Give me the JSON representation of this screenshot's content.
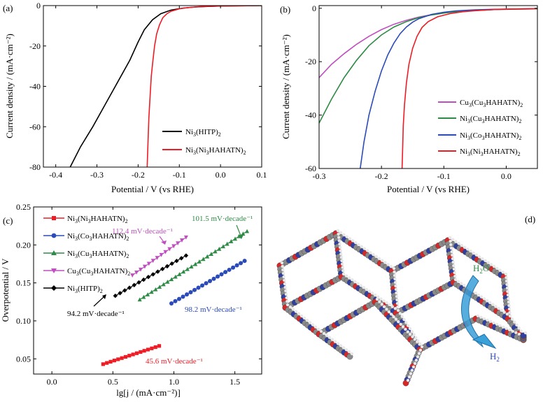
{
  "chart_data": [
    {
      "panel": "(a)",
      "type": "line",
      "xlabel": "Potential / V (vs RHE)",
      "ylabel": "Current density / (mA·cm⁻²)",
      "xlim": [
        -0.43,
        0.1
      ],
      "ylim": [
        -80,
        0
      ],
      "xticks": [
        -0.4,
        -0.3,
        -0.2,
        -0.1,
        0.0,
        0.1
      ],
      "xtick_labels": [
        "-0.4",
        "-0.3",
        "-0.2",
        "-0.1",
        "0.0",
        "0.1"
      ],
      "yticks": [
        0,
        -20,
        -40,
        -60,
        -80
      ],
      "ytick_labels": [
        "0",
        "-20",
        "-40",
        "-60",
        "-80"
      ],
      "legend": "bottom-right",
      "series": [
        {
          "name": "Ni3(HITP)2",
          "label_main": "Ni",
          "label_sub1": "3",
          "label_mid": "(HITP)",
          "label_sub2": "2",
          "color": "#000000",
          "x": [
            -0.365,
            -0.34,
            -0.31,
            -0.28,
            -0.25,
            -0.22,
            -0.2,
            -0.185,
            -0.165,
            -0.145,
            -0.12,
            -0.09,
            -0.06,
            -0.03,
            0.0,
            0.04,
            0.1
          ],
          "y": [
            -80,
            -70,
            -60,
            -49,
            -38,
            -27,
            -18,
            -12,
            -7,
            -4,
            -2.2,
            -1.2,
            -0.7,
            -0.4,
            -0.2,
            -0.1,
            0
          ]
        },
        {
          "name": "Ni3(Ni3HAHATN)2",
          "label_main": "Ni",
          "label_sub1": "3",
          "label_mid": "(Ni",
          "label_sub2": "3",
          "label_rest": "HAHATN)",
          "label_sub3": "2",
          "color": "#ee1c25",
          "x": [
            -0.178,
            -0.176,
            -0.174,
            -0.171,
            -0.168,
            -0.164,
            -0.16,
            -0.155,
            -0.148,
            -0.14,
            -0.13,
            -0.12,
            -0.1,
            -0.08,
            -0.05,
            -0.02,
            0.0,
            0.05,
            0.1
          ],
          "y": [
            -80,
            -68,
            -56,
            -45,
            -35,
            -27,
            -20,
            -14,
            -9.5,
            -6,
            -4,
            -2.8,
            -1.6,
            -1.0,
            -0.5,
            -0.3,
            -0.2,
            -0.1,
            0
          ]
        }
      ]
    },
    {
      "panel": "(b)",
      "type": "line",
      "xlabel": "Potential / V (vs RHE)",
      "ylabel": "Current density / (mA·cm⁻²)",
      "xlim": [
        -0.3,
        0.05
      ],
      "ylim": [
        -60,
        1
      ],
      "xticks": [
        -0.3,
        -0.2,
        -0.1,
        0.0
      ],
      "xtick_labels": [
        "-0.3",
        "-0.2",
        "-0.1",
        "0.0"
      ],
      "yticks": [
        0,
        -20,
        -40,
        -60
      ],
      "ytick_labels": [
        "0",
        "-20",
        "-40",
        "-60"
      ],
      "legend": "bottom-right",
      "series": [
        {
          "name": "Cu3(Cu3HAHATN)2",
          "label_main": "Cu",
          "label_sub1": "3",
          "label_mid": "(Cu",
          "label_sub2": "3",
          "label_rest": "HAHATN)",
          "label_sub3": "2",
          "color": "#bf4fbf",
          "x": [
            -0.3,
            -0.28,
            -0.26,
            -0.24,
            -0.22,
            -0.2,
            -0.18,
            -0.16,
            -0.14,
            -0.12,
            -0.1,
            -0.08,
            -0.05,
            -0.02,
            0.0,
            0.05
          ],
          "y": [
            -26,
            -21,
            -17,
            -13.5,
            -10.5,
            -8,
            -6,
            -4.5,
            -3.3,
            -2.4,
            -1.7,
            -1.2,
            -0.8,
            -0.5,
            -0.4,
            -0.2
          ]
        },
        {
          "name": "Ni3(Cu3HAHATN)2",
          "label_main": "Ni",
          "label_sub1": "3",
          "label_mid": "(Cu",
          "label_sub2": "3",
          "label_rest": "HAHATN)",
          "label_sub3": "2",
          "color": "#2e8b46",
          "x": [
            -0.3,
            -0.28,
            -0.26,
            -0.24,
            -0.22,
            -0.2,
            -0.18,
            -0.16,
            -0.14,
            -0.12,
            -0.1,
            -0.08,
            -0.05,
            -0.02,
            0.0,
            0.05
          ],
          "y": [
            -43,
            -34,
            -26,
            -19.5,
            -14,
            -10,
            -7,
            -5,
            -3.5,
            -2.5,
            -1.8,
            -1.3,
            -0.8,
            -0.5,
            -0.4,
            -0.2
          ]
        },
        {
          "name": "Ni3(Co3HAHATN)2",
          "label_main": "Ni",
          "label_sub1": "3",
          "label_mid": "(Co",
          "label_sub2": "3",
          "label_rest": "HAHATN)",
          "label_sub3": "2",
          "color": "#2b4bb8",
          "x": [
            -0.234,
            -0.228,
            -0.22,
            -0.21,
            -0.2,
            -0.19,
            -0.18,
            -0.17,
            -0.16,
            -0.15,
            -0.14,
            -0.12,
            -0.1,
            -0.08,
            -0.05,
            -0.02,
            0.0,
            0.05
          ],
          "y": [
            -60,
            -50,
            -40,
            -31,
            -23.5,
            -17.5,
            -13,
            -9.5,
            -7,
            -5.2,
            -3.9,
            -2.3,
            -1.5,
            -1.0,
            -0.6,
            -0.4,
            -0.3,
            -0.1
          ]
        },
        {
          "name": "Ni3(Ni3HAHATN)2",
          "label_main": "Ni",
          "label_sub1": "3",
          "label_mid": "(Ni",
          "label_sub2": "3",
          "label_rest": "HAHATN)",
          "label_sub3": "2",
          "color": "#ee1c25",
          "x": [
            -0.167,
            -0.166,
            -0.165,
            -0.163,
            -0.16,
            -0.156,
            -0.15,
            -0.143,
            -0.135,
            -0.125,
            -0.11,
            -0.09,
            -0.07,
            -0.05,
            -0.02,
            0.0,
            0.05
          ],
          "y": [
            -60,
            -52,
            -44,
            -36,
            -28,
            -21,
            -15,
            -10.5,
            -7.2,
            -5,
            -3.2,
            -2,
            -1.3,
            -0.9,
            -0.5,
            -0.3,
            -0.1
          ]
        }
      ]
    },
    {
      "panel": "(c)",
      "type": "scatter",
      "xlabel": "lg[j / (mA·cm⁻²)]",
      "ylabel": "Overpotential / V",
      "xlim": [
        -0.15,
        1.72
      ],
      "ylim": [
        0.03,
        0.25
      ],
      "xticks": [
        0.0,
        0.5,
        1.0,
        1.5
      ],
      "xtick_labels": [
        "0.0",
        "0.5",
        "1.0",
        "1.5"
      ],
      "yticks": [
        0.05,
        0.1,
        0.15,
        0.2,
        0.25
      ],
      "ytick_labels": [
        "0.05",
        "0.10",
        "0.15",
        "0.20",
        "0.25"
      ],
      "legend": "top-left",
      "series": [
        {
          "name": "Ni3(Ni3HAHATN)2",
          "label_main": "Ni",
          "label_sub1": "3",
          "label_mid": "(Ni",
          "label_sub2": "3",
          "label_rest": "HAHATN)",
          "label_sub3": "2",
          "color": "#ee1c25",
          "marker": "square",
          "x_start": 0.42,
          "x_end": 0.88,
          "y_start": 0.043,
          "y_end": 0.067,
          "n": 16,
          "annotation": "45.6 mV·decade⁻¹"
        },
        {
          "name": "Ni3(Co3HAHATN)2",
          "label_main": "Ni",
          "label_sub1": "3",
          "label_mid": "(Co",
          "label_sub2": "3",
          "label_rest": "HAHATN)",
          "label_sub3": "2",
          "color": "#2b4bb8",
          "marker": "circle",
          "x_start": 0.98,
          "x_end": 1.58,
          "y_start": 0.123,
          "y_end": 0.179,
          "n": 20,
          "annotation": "98.2 mV·decade⁻¹"
        },
        {
          "name": "Ni3(Cu3HAHATN)2",
          "label_main": "Ni",
          "label_sub1": "3",
          "label_mid": "(Cu",
          "label_sub2": "3",
          "label_rest": "HAHATN)",
          "label_sub3": "2",
          "color": "#2e8b46",
          "marker": "triangle-up",
          "x_start": 0.72,
          "x_end": 1.6,
          "y_start": 0.128,
          "y_end": 0.218,
          "n": 28,
          "annotation": "101.5 mV·decade⁻¹"
        },
        {
          "name": "Cu3(Cu3HAHATN)2",
          "label_main": "Cu",
          "label_sub1": "3",
          "label_mid": "(Cu",
          "label_sub2": "3",
          "label_rest": "HAHATN)",
          "label_sub3": "2",
          "color": "#bf4fbf",
          "marker": "triangle-down",
          "x_start": 0.66,
          "x_end": 1.1,
          "y_start": 0.16,
          "y_end": 0.21,
          "n": 14,
          "annotation": "112.4 mV·decade⁻¹"
        },
        {
          "name": "Ni3(HITP)2",
          "label_main": "Ni",
          "label_sub1": "3",
          "label_mid": "(HITP)",
          "label_sub2": "2",
          "color": "#000000",
          "marker": "diamond",
          "x_start": 0.52,
          "x_end": 1.1,
          "y_start": 0.133,
          "y_end": 0.186,
          "n": 16,
          "annotation": "94.2 mV·decade⁻¹"
        }
      ]
    },
    {
      "panel": "(d)",
      "type": "illustration",
      "labels": {
        "h2o_main": "H",
        "h2o_sub": "2",
        "h2o_end": "O",
        "h2_main": "H",
        "h2_sub": "2"
      },
      "colors": {
        "h2o": "#2e8b46",
        "h2": "#2b4bb8",
        "arrow": "#3aa0d8"
      }
    }
  ]
}
